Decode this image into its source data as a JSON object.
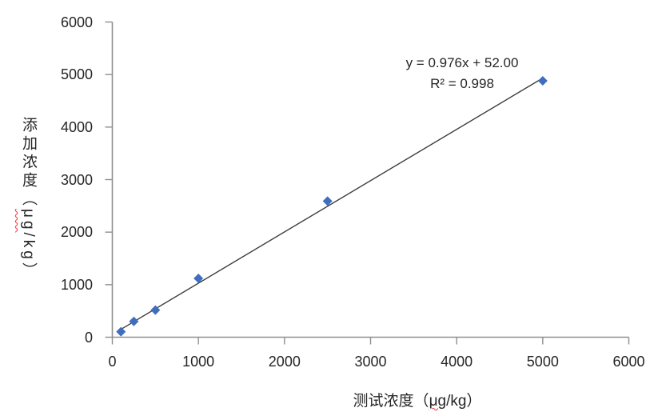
{
  "chart_data": {
    "type": "scatter",
    "title": "",
    "xlabel": "测试浓度（μg/kg）",
    "ylabel": "添加浓度（μg/kg）",
    "xlim": [
      0,
      6000
    ],
    "ylim": [
      0,
      6000
    ],
    "x_ticks": [
      0,
      1000,
      2000,
      3000,
      4000,
      5000,
      6000
    ],
    "y_ticks": [
      0,
      1000,
      2000,
      3000,
      4000,
      5000,
      6000
    ],
    "grid": false,
    "legend_position": "none",
    "points": [
      [
        100,
        105
      ],
      [
        250,
        300
      ],
      [
        500,
        515
      ],
      [
        1000,
        1120
      ],
      [
        2500,
        2590
      ],
      [
        5000,
        4880
      ]
    ],
    "trendline": {
      "slope": 0.976,
      "intercept": 52.0,
      "x_range": [
        100,
        5000
      ],
      "label": "y = 0.976x + 52.00",
      "r2_label": "R² = 0.998"
    },
    "marker_color": "#3f6ebe",
    "line_color": "#3d3d3d",
    "axis_color": "#8f8f8f",
    "text_color": "#262626",
    "spellcheck_color": "#ff2a2a"
  },
  "labels": {
    "x_title_prefix": "测试浓度（",
    "y_title_cjk": "添加浓度",
    "y_title_open_paren": "（",
    "unit_mu": "μg",
    "unit_rest": "/kg）"
  }
}
